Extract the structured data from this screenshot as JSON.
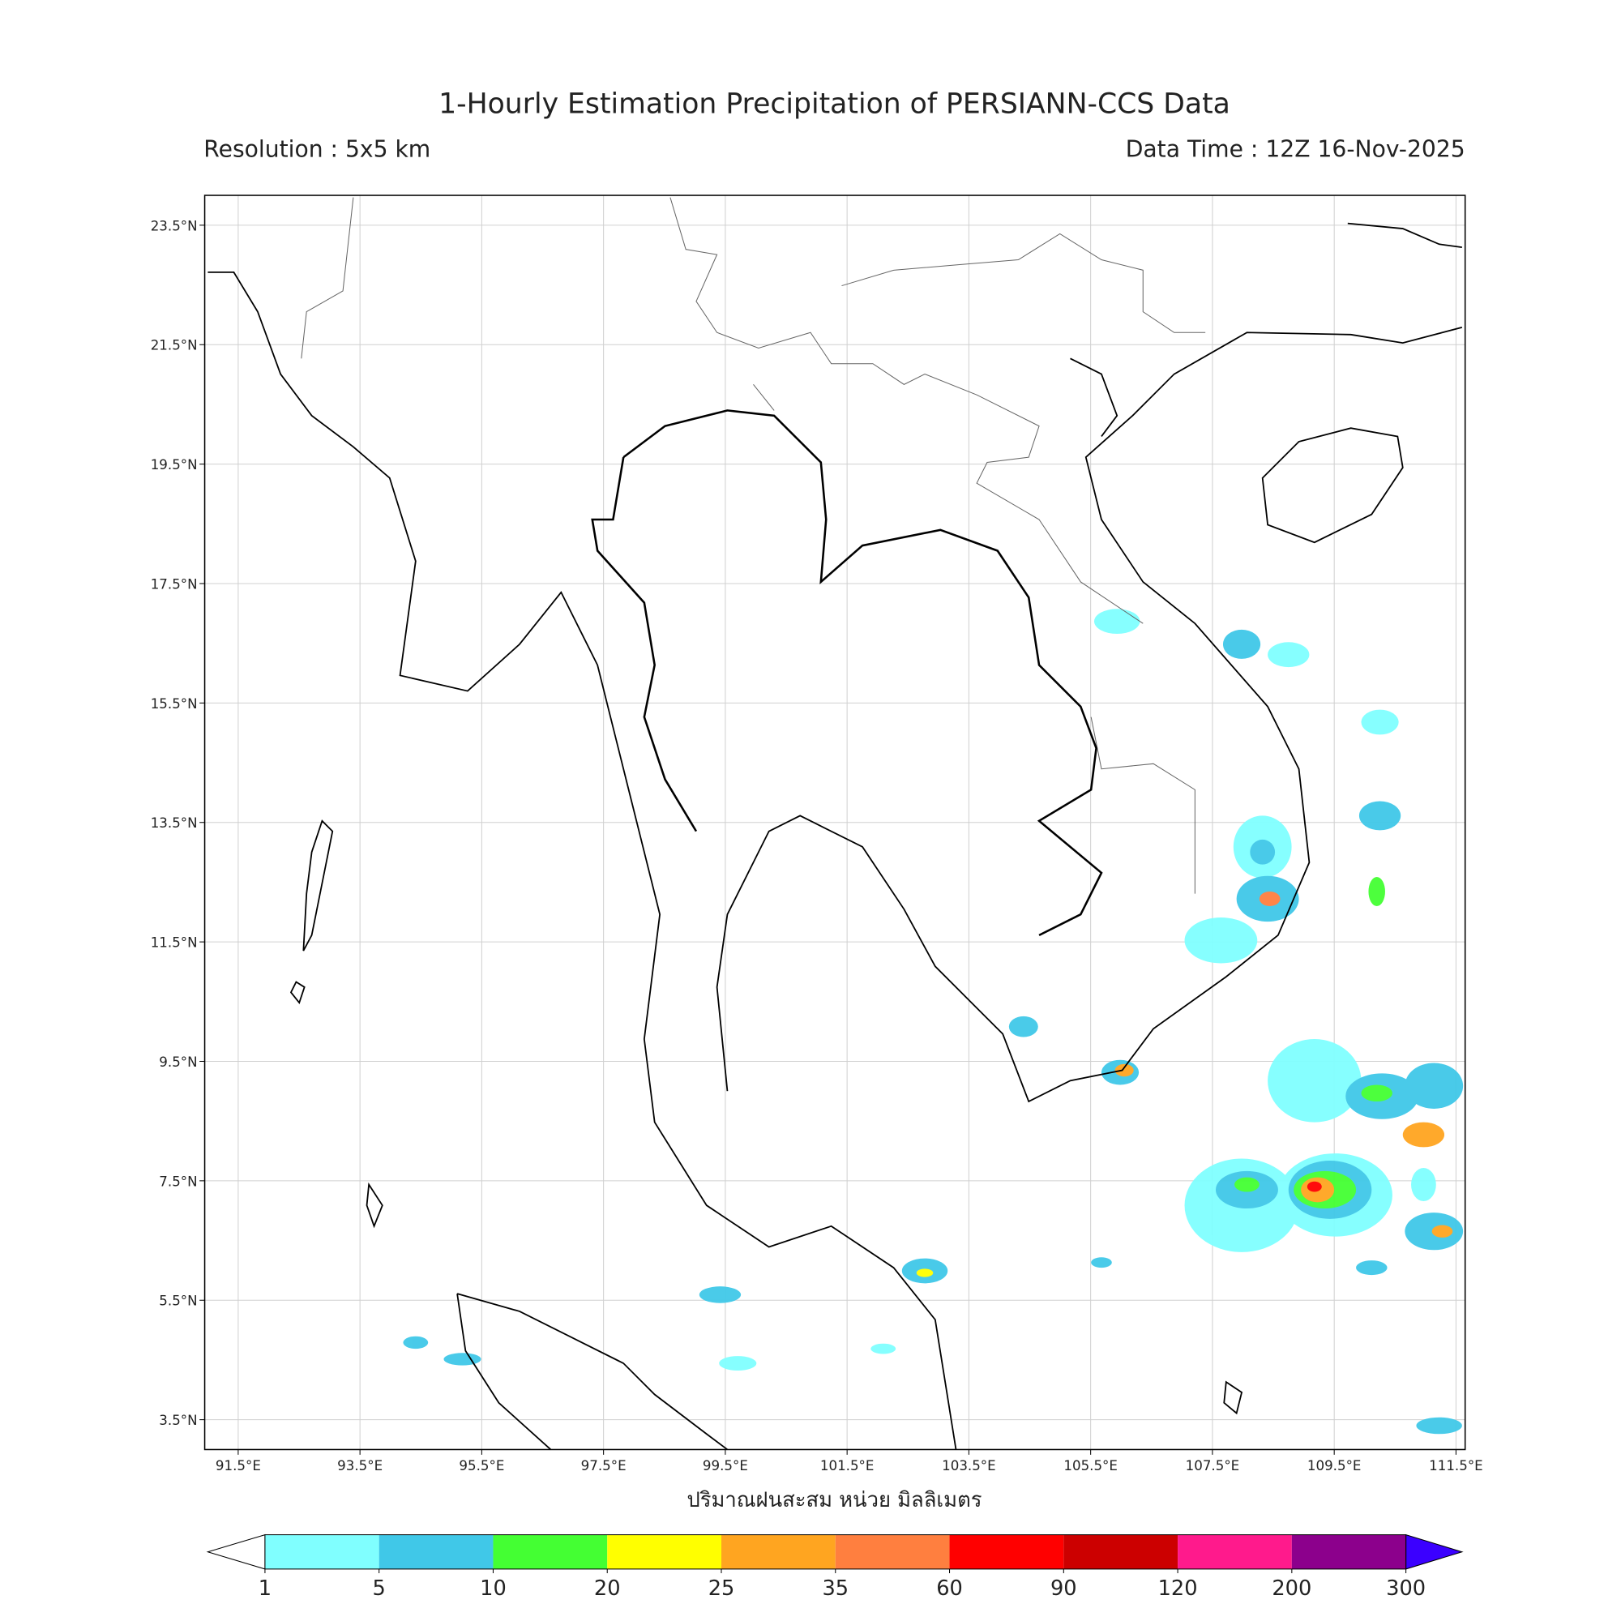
{
  "title": "1-Hourly Estimation Precipitation of PERSIANN-CCS Data",
  "resolution": "Resolution : 5x5 km",
  "data_time": "Data Time : 12Z 16-Nov-2025",
  "map": {
    "lon_range": [
      90.95,
      111.65
    ],
    "lat_range": [
      3.0,
      24.0
    ],
    "lon_ticks": [
      {
        "value": 91.5,
        "label": "91.5°E"
      },
      {
        "value": 93.5,
        "label": "93.5°E"
      },
      {
        "value": 95.5,
        "label": "95.5°E"
      },
      {
        "value": 97.5,
        "label": "97.5°E"
      },
      {
        "value": 99.5,
        "label": "99.5°E"
      },
      {
        "value": 101.5,
        "label": "101.5°E"
      },
      {
        "value": 103.5,
        "label": "103.5°E"
      },
      {
        "value": 105.5,
        "label": "105.5°E"
      },
      {
        "value": 107.5,
        "label": "107.5°E"
      },
      {
        "value": 109.5,
        "label": "109.5°E"
      },
      {
        "value": 111.5,
        "label": "111.5°E"
      }
    ],
    "lat_ticks": [
      {
        "value": 23.5,
        "label": "23.5°N"
      },
      {
        "value": 21.5,
        "label": "21.5°N"
      },
      {
        "value": 19.5,
        "label": "19.5°N"
      },
      {
        "value": 17.5,
        "label": "17.5°N"
      },
      {
        "value": 15.5,
        "label": "15.5°N"
      },
      {
        "value": 13.5,
        "label": "13.5°N"
      },
      {
        "value": 11.5,
        "label": "11.5°N"
      },
      {
        "value": 9.5,
        "label": "9.5°N"
      },
      {
        "value": 7.5,
        "label": "7.5°N"
      },
      {
        "value": 5.5,
        "label": "5.5°N"
      },
      {
        "value": 3.5,
        "label": "3.5°N"
      }
    ],
    "axis_label": "ปริมาณฝนสะสม หน่วย มิลลิเมตร"
  },
  "colorbar": {
    "levels": [
      1,
      5,
      10,
      20,
      25,
      35,
      60,
      90,
      120,
      200,
      300
    ],
    "colors": [
      "#80ffff",
      "#40c8e8",
      "#44ff33",
      "#ffff00",
      "#ffa520",
      "#ff7f3f",
      "#ff0000",
      "#cc0000",
      "#ff1a8c",
      "#8c008c"
    ],
    "under_color": "#ffffff",
    "over_color": "#3b00ff"
  }
}
